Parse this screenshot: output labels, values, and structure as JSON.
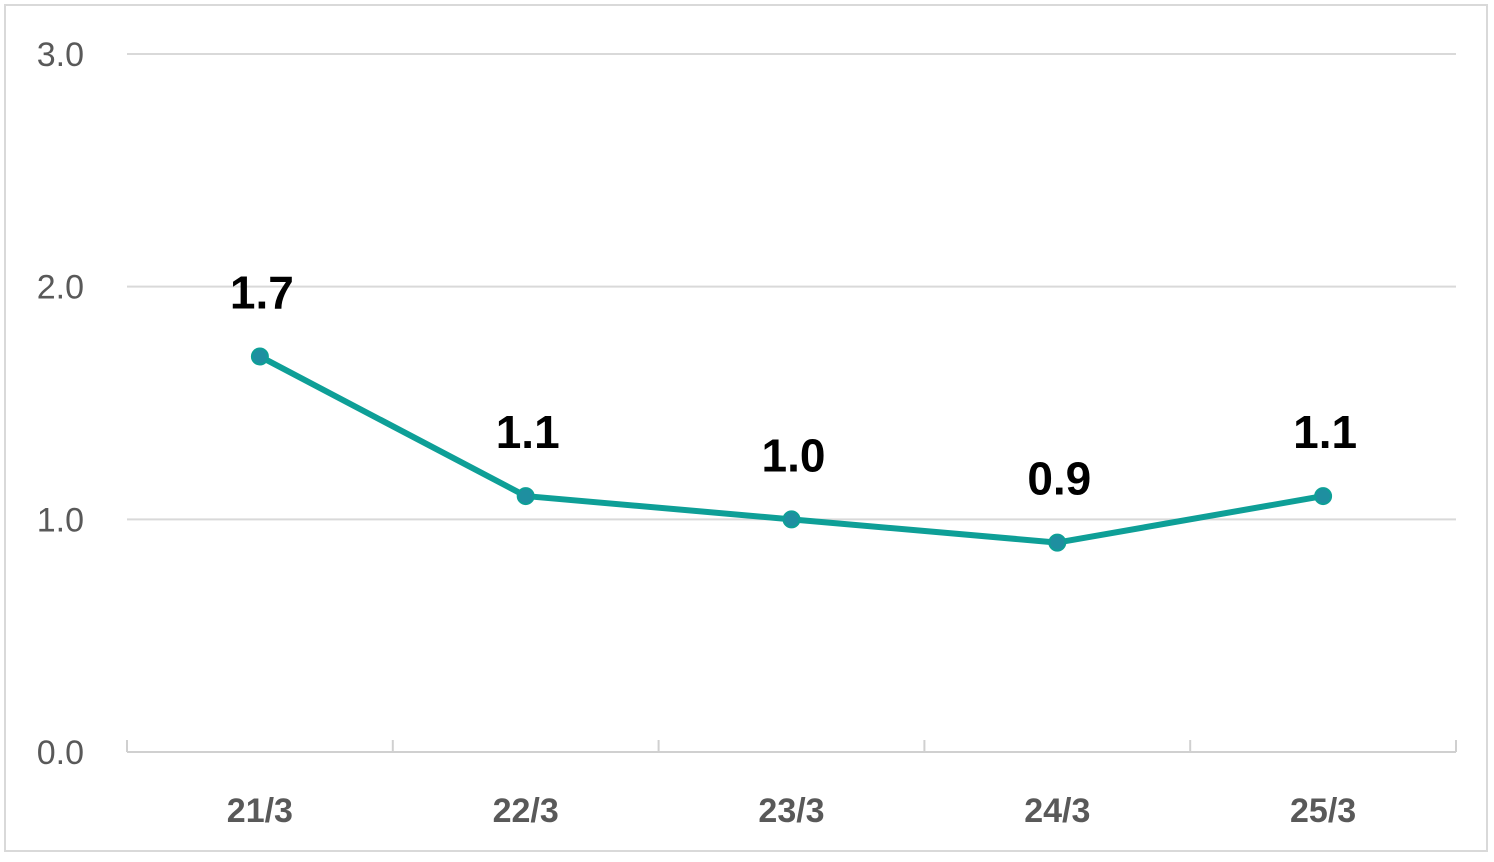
{
  "chart_data": {
    "type": "line",
    "categories": [
      "21/3",
      "22/3",
      "23/3",
      "24/3",
      "25/3"
    ],
    "series": [
      {
        "values": [
          1.7,
          1.1,
          1.0,
          0.9,
          1.1
        ]
      }
    ],
    "data_labels": [
      "1.7",
      "1.1",
      "1.0",
      "0.9",
      "1.1"
    ],
    "yticks": [
      "0.0",
      "1.0",
      "2.0",
      "3.0"
    ],
    "ylim": [
      0,
      3
    ],
    "grid": true,
    "legend": "none",
    "line_color": "#0e9f97",
    "marker_color": "#1e8fa0",
    "grid_color": "#d9d9d9",
    "axis_color": "#d0d0d0"
  }
}
